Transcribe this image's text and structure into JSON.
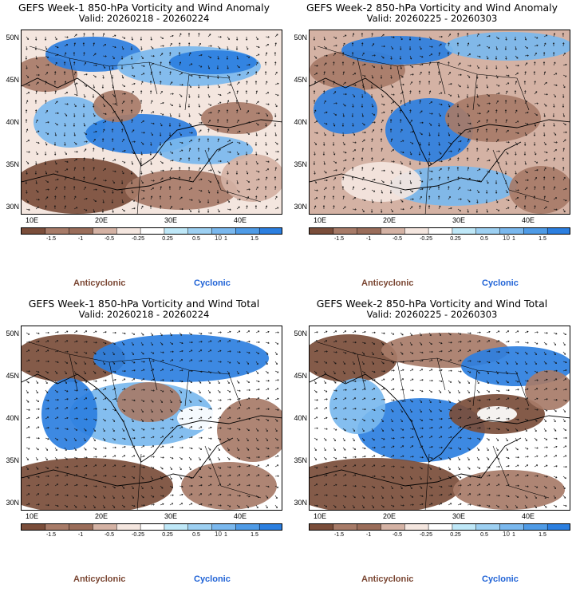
{
  "colors": {
    "ocean": "#ffffff",
    "anti_strong": "#7a4d3a",
    "anti_mid": "#a77b68",
    "anti_weak": "#d4b2a4",
    "anti_light": "#f4e6df",
    "cyc_light": "#bfe8f8",
    "cyc_mid": "#7ab8ee",
    "cyc_strong": "#2c7fe0",
    "label_anti": "#7a4632",
    "label_cyc": "#2063d6"
  },
  "axes": {
    "lat_labels": [
      "50N",
      "45N",
      "40N",
      "35N",
      "30N"
    ],
    "lon_labels": [
      "10E",
      "20E",
      "30E",
      "40E"
    ]
  },
  "colorbar": {
    "labels": [
      "-1.5",
      "-1",
      "-0.5",
      "-0.25",
      "0.25",
      "0.5",
      "1",
      "1.5"
    ],
    "scale_mark": "10"
  },
  "legend": {
    "anticyclonic": "Anticyclonic",
    "cyclonic": "Cyclonic"
  },
  "panels": [
    {
      "title": "GEFS Week-1 850-hPa Vorticity and Wind Anomaly",
      "valid": "Valid: 20260218 - 20260224",
      "variant": "anomaly-1"
    },
    {
      "title": "GEFS Week-2 850-hPa Vorticity and Wind Anomaly",
      "valid": "Valid: 20260225 - 20260303",
      "variant": "anomaly-2"
    },
    {
      "title": "GEFS Week-1 850-hPa Vorticity and Wind Total",
      "valid": "Valid: 20260218 - 20260224",
      "variant": "total-1"
    },
    {
      "title": "GEFS Week-2 850-hPa Vorticity and Wind Total",
      "valid": "Valid: 20260225 - 20260303",
      "variant": "total-2"
    }
  ]
}
